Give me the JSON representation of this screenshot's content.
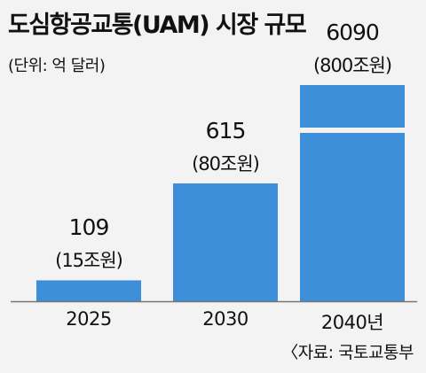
{
  "chart_data": {
    "type": "bar",
    "title": "도심항공교통(UAM) 시장 규모",
    "unit": "(단위: 억 달러)",
    "categories": [
      "2025",
      "2030",
      "2040년"
    ],
    "values": [
      109,
      615,
      6090
    ],
    "value_labels": [
      "109",
      "615",
      "6090"
    ],
    "krw_labels": [
      "(15조원)",
      "(80조원)",
      "(800조원)"
    ],
    "axis_break_on": "2040년",
    "bar_color": "#3d8fd9",
    "source": "〈자료: 국토교통부"
  }
}
